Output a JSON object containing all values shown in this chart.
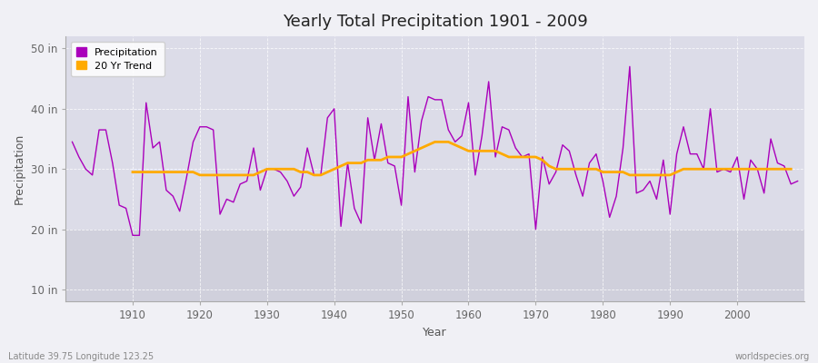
{
  "title": "Yearly Total Precipitation 1901 - 2009",
  "xlabel": "Year",
  "ylabel": "Precipitation",
  "outer_bg_color": "#f0f0f5",
  "plot_bg_color": "#dcdce8",
  "plot_bg_color_bottom": "#d0d0dc",
  "precip_color": "#aa00bb",
  "trend_color": "#ffaa00",
  "precip_label": "Precipitation",
  "trend_label": "20 Yr Trend",
  "footer_left": "Latitude 39.75 Longitude 123.25",
  "footer_right": "worldspecies.org",
  "ylim": [
    8,
    52
  ],
  "yticks": [
    10,
    20,
    30,
    40,
    50
  ],
  "ytick_labels": [
    "10 in",
    "20 in",
    "30 in",
    "40 in",
    "50 in"
  ],
  "years": [
    1901,
    1902,
    1903,
    1904,
    1905,
    1906,
    1907,
    1908,
    1909,
    1910,
    1911,
    1912,
    1913,
    1914,
    1915,
    1916,
    1917,
    1918,
    1919,
    1920,
    1921,
    1922,
    1923,
    1924,
    1925,
    1926,
    1927,
    1928,
    1929,
    1930,
    1931,
    1932,
    1933,
    1934,
    1935,
    1936,
    1937,
    1938,
    1939,
    1940,
    1941,
    1942,
    1943,
    1944,
    1945,
    1946,
    1947,
    1948,
    1949,
    1950,
    1951,
    1952,
    1953,
    1954,
    1955,
    1956,
    1957,
    1958,
    1959,
    1960,
    1961,
    1962,
    1963,
    1964,
    1965,
    1966,
    1967,
    1968,
    1969,
    1970,
    1971,
    1972,
    1973,
    1974,
    1975,
    1976,
    1977,
    1978,
    1979,
    1980,
    1981,
    1982,
    1983,
    1984,
    1985,
    1986,
    1987,
    1988,
    1989,
    1990,
    1991,
    1992,
    1993,
    1994,
    1995,
    1996,
    1997,
    1998,
    1999,
    2000,
    2001,
    2002,
    2003,
    2004,
    2005,
    2006,
    2007,
    2008,
    2009
  ],
  "precip": [
    34.5,
    32.0,
    30.0,
    29.0,
    36.5,
    36.5,
    31.0,
    24.0,
    23.5,
    19.0,
    19.0,
    41.0,
    33.5,
    34.5,
    26.5,
    25.5,
    23.0,
    28.5,
    34.5,
    37.0,
    37.0,
    36.5,
    22.5,
    25.0,
    24.5,
    27.5,
    28.0,
    33.5,
    26.5,
    30.0,
    30.0,
    29.5,
    28.0,
    25.5,
    27.0,
    33.5,
    29.0,
    29.0,
    38.5,
    40.0,
    20.5,
    31.0,
    23.5,
    21.0,
    38.5,
    31.5,
    37.5,
    31.0,
    30.5,
    24.0,
    42.0,
    29.5,
    38.0,
    42.0,
    41.5,
    41.5,
    36.5,
    34.5,
    35.5,
    41.0,
    29.0,
    35.5,
    44.5,
    32.0,
    37.0,
    36.5,
    33.5,
    32.0,
    32.5,
    20.0,
    32.0,
    27.5,
    29.5,
    34.0,
    33.0,
    29.0,
    25.5,
    31.0,
    32.5,
    28.0,
    22.0,
    25.5,
    33.5,
    47.0,
    26.0,
    26.5,
    28.0,
    25.0,
    31.5,
    22.5,
    32.5,
    37.0,
    32.5,
    32.5,
    30.0,
    40.0,
    29.5,
    30.0,
    29.5,
    32.0,
    25.0,
    31.5,
    30.0,
    26.0,
    35.0,
    31.0,
    30.5,
    27.5,
    28.0
  ],
  "trend": [
    null,
    null,
    null,
    null,
    null,
    null,
    null,
    null,
    null,
    29.5,
    29.5,
    29.5,
    29.5,
    29.5,
    29.5,
    29.5,
    29.5,
    29.5,
    29.5,
    29.0,
    29.0,
    29.0,
    29.0,
    29.0,
    29.0,
    29.0,
    29.0,
    29.0,
    29.5,
    30.0,
    30.0,
    30.0,
    30.0,
    30.0,
    29.5,
    29.5,
    29.0,
    29.0,
    29.5,
    30.0,
    30.5,
    31.0,
    31.0,
    31.0,
    31.5,
    31.5,
    31.5,
    32.0,
    32.0,
    32.0,
    32.5,
    33.0,
    33.5,
    34.0,
    34.5,
    34.5,
    34.5,
    34.0,
    33.5,
    33.0,
    33.0,
    33.0,
    33.0,
    33.0,
    32.5,
    32.0,
    32.0,
    32.0,
    32.0,
    32.0,
    31.5,
    30.5,
    30.0,
    30.0,
    30.0,
    30.0,
    30.0,
    30.0,
    30.0,
    29.5,
    29.5,
    29.5,
    29.5,
    29.0,
    29.0,
    29.0,
    29.0,
    29.0,
    29.0,
    29.0,
    29.5,
    30.0,
    30.0,
    30.0,
    30.0,
    30.0,
    30.0,
    30.0,
    30.0,
    30.0,
    30.0,
    30.0,
    30.0,
    30.0,
    30.0,
    30.0,
    30.0,
    30.0,
    null
  ]
}
